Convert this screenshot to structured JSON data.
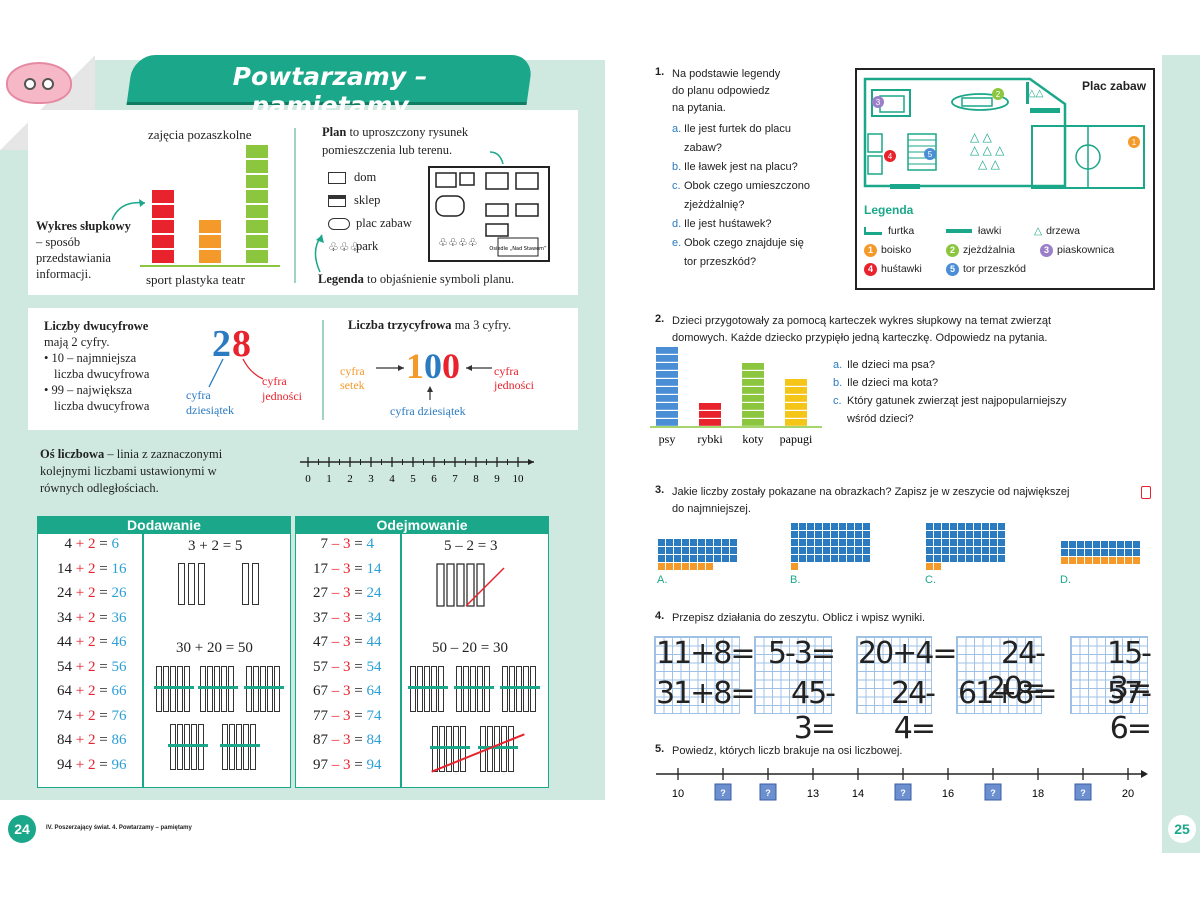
{
  "left": {
    "title": "Powtarzamy – pamiętamy",
    "page_number": "24",
    "footer": "IV. Poszerzający świat. 4. Powtarzamy – pamiętamy",
    "bar_chart": {
      "caption": "zajęcia pozaszkolne",
      "def_bold": "Wykres słupkowy",
      "def_rest": "– sposób przedstawiania informacji.",
      "categories": [
        "sport",
        "plastyka",
        "teatr"
      ],
      "values": [
        5,
        3,
        8
      ],
      "colors": [
        "#e8232d",
        "#f39a2b",
        "#8cc63f"
      ]
    },
    "plan": {
      "def_bold": "Plan",
      "def_rest": "to uproszczony rysunek pomieszczenia lub terenu.",
      "legend_items": [
        "dom",
        "sklep",
        "plac zabaw",
        "park"
      ],
      "legend_bold": "Legenda",
      "legend_rest": "to objaśnienie symboli planu.",
      "map_label": "Osiedle „Nad Stawem”"
    },
    "two_digit": {
      "heading": "Liczby dwucyfrowe",
      "line1": "mają 2 cyfry.",
      "bullet1": "• 10 – najmniejsza",
      "bullet1b": "liczba dwucyfrowa",
      "bullet2": "• 99 – największa",
      "bullet2b": "liczba dwucyfrowa",
      "digit_tens": "2",
      "digit_units": "8",
      "label_tens": "cyfra dziesiątek",
      "label_units": "cyfra jedności"
    },
    "three_digit": {
      "heading": "Liczba trzycyfrowa",
      "heading_rest": "ma 3 cyfry.",
      "d1": "1",
      "d2": "0",
      "d3": "0",
      "label_hundreds": "cyfra setek",
      "label_tens": "cyfra dziesiątek",
      "label_units": "cyfra jedności"
    },
    "number_line": {
      "def_bold": "Oś liczbowa",
      "def_rest": "– linia z zaznaczonymi kolejnymi liczbami ustawionymi w równych odległościach.",
      "ticks": [
        "0",
        "1",
        "2",
        "3",
        "4",
        "5",
        "6",
        "7",
        "8",
        "9",
        "10"
      ]
    },
    "addition": {
      "header": "Dodawanie",
      "example1": "3 + 2 = 5",
      "example2": "30 + 20 = 50",
      "rows": [
        {
          "a": "4",
          "b": "2",
          "c": "6"
        },
        {
          "a": "14",
          "b": "2",
          "c": "16"
        },
        {
          "a": "24",
          "b": "2",
          "c": "26"
        },
        {
          "a": "34",
          "b": "2",
          "c": "36"
        },
        {
          "a": "44",
          "b": "2",
          "c": "46"
        },
        {
          "a": "54",
          "b": "2",
          "c": "56"
        },
        {
          "a": "64",
          "b": "2",
          "c": "66"
        },
        {
          "a": "74",
          "b": "2",
          "c": "76"
        },
        {
          "a": "84",
          "b": "2",
          "c": "86"
        },
        {
          "a": "94",
          "b": "2",
          "c": "96"
        }
      ]
    },
    "subtraction": {
      "header": "Odejmowanie",
      "example1": "5 – 2 = 3",
      "example2": "50 – 20 = 30",
      "rows": [
        {
          "a": "7",
          "b": "3",
          "c": "4"
        },
        {
          "a": "17",
          "b": "3",
          "c": "14"
        },
        {
          "a": "27",
          "b": "3",
          "c": "24"
        },
        {
          "a": "37",
          "b": "3",
          "c": "34"
        },
        {
          "a": "47",
          "b": "3",
          "c": "44"
        },
        {
          "a": "57",
          "b": "3",
          "c": "54"
        },
        {
          "a": "67",
          "b": "3",
          "c": "64"
        },
        {
          "a": "77",
          "b": "3",
          "c": "74"
        },
        {
          "a": "87",
          "b": "3",
          "c": "84"
        },
        {
          "a": "97",
          "b": "3",
          "c": "94"
        }
      ]
    }
  },
  "right": {
    "page_number": "25",
    "q1": {
      "num": "1.",
      "text": [
        "Na podstawie legendy",
        "do planu odpowiedz",
        "na pytania."
      ],
      "subs": [
        {
          "l": "a.",
          "t": "Ile jest furtek do placu"
        },
        {
          "l": "",
          "t": "zabaw?"
        },
        {
          "l": "b.",
          "t": "Ile ławek jest na placu?"
        },
        {
          "l": "c.",
          "t": "Obok czego umieszczono"
        },
        {
          "l": "",
          "t": "zjeżdżalnię?"
        },
        {
          "l": "d.",
          "t": "Ile jest huśtawek?"
        },
        {
          "l": "e.",
          "t": "Obok czego znajduje się"
        },
        {
          "l": "",
          "t": "tor przeszkód?"
        }
      ],
      "map_title": "Plac zabaw",
      "legend_title": "Legenda",
      "legend": [
        {
          "icon": "gate",
          "t": "furtka"
        },
        {
          "icon": "bench",
          "t": "ławki"
        },
        {
          "icon": "tree",
          "t": "drzewa"
        },
        {
          "n": "1",
          "color": "#f39a2b",
          "t": "boisko"
        },
        {
          "n": "2",
          "color": "#8cc63f",
          "t": "zjeżdżalnia"
        },
        {
          "n": "3",
          "color": "#9b7fc9",
          "t": "piaskownica"
        },
        {
          "n": "4",
          "color": "#e8232d",
          "t": "huśtawki"
        },
        {
          "n": "5",
          "color": "#4a8fd6",
          "t": "tor przeszkód"
        }
      ]
    },
    "q2": {
      "num": "2.",
      "text": [
        "Dzieci przygotowały za pomocą karteczek wykres słupkowy na temat zwierząt",
        "domowych. Każde dziecko przypięło jedną karteczkę. Odpowiedz na pytania."
      ],
      "subs": [
        {
          "l": "a.",
          "t": "Ile dzieci ma psa?"
        },
        {
          "l": "b.",
          "t": "Ile dzieci ma kota?"
        },
        {
          "l": "c.",
          "t": "Który gatunek zwierząt jest najpopularniejszy"
        },
        {
          "l": "",
          "t": "wśród dzieci?"
        }
      ]
    },
    "q3": {
      "num": "3.",
      "text": [
        "Jakie liczby zostały pokazane na obrazkach? Zapisz je w zeszycie od największej",
        "do najmniejszej."
      ],
      "labels": [
        "A.",
        "B.",
        "C.",
        "D."
      ]
    },
    "q4": {
      "num": "4.",
      "text": "Przepisz działania do zeszytu. Oblicz i wpisz wyniki.",
      "top": [
        "11+8=",
        "5-3=",
        "20+4=",
        "24-20=",
        "15-3="
      ],
      "bottom": [
        "31+8=",
        "45-3=",
        "24-4=",
        "61+8=",
        "57-6="
      ]
    },
    "q5": {
      "num": "5.",
      "text": "Powiedz, których liczb brakuje na osi liczbowej.",
      "ticks": [
        "10",
        "?",
        "?",
        "13",
        "14",
        "?",
        "16",
        "?",
        "18",
        "?",
        "20"
      ]
    }
  },
  "chart_data": {
    "type": "bar",
    "categories": [
      "psy",
      "rybki",
      "koty",
      "papugi"
    ],
    "values": [
      10,
      3,
      8,
      6
    ],
    "colors": [
      "#4a8fd6",
      "#e8232d",
      "#8cc63f",
      "#f5c518"
    ]
  }
}
